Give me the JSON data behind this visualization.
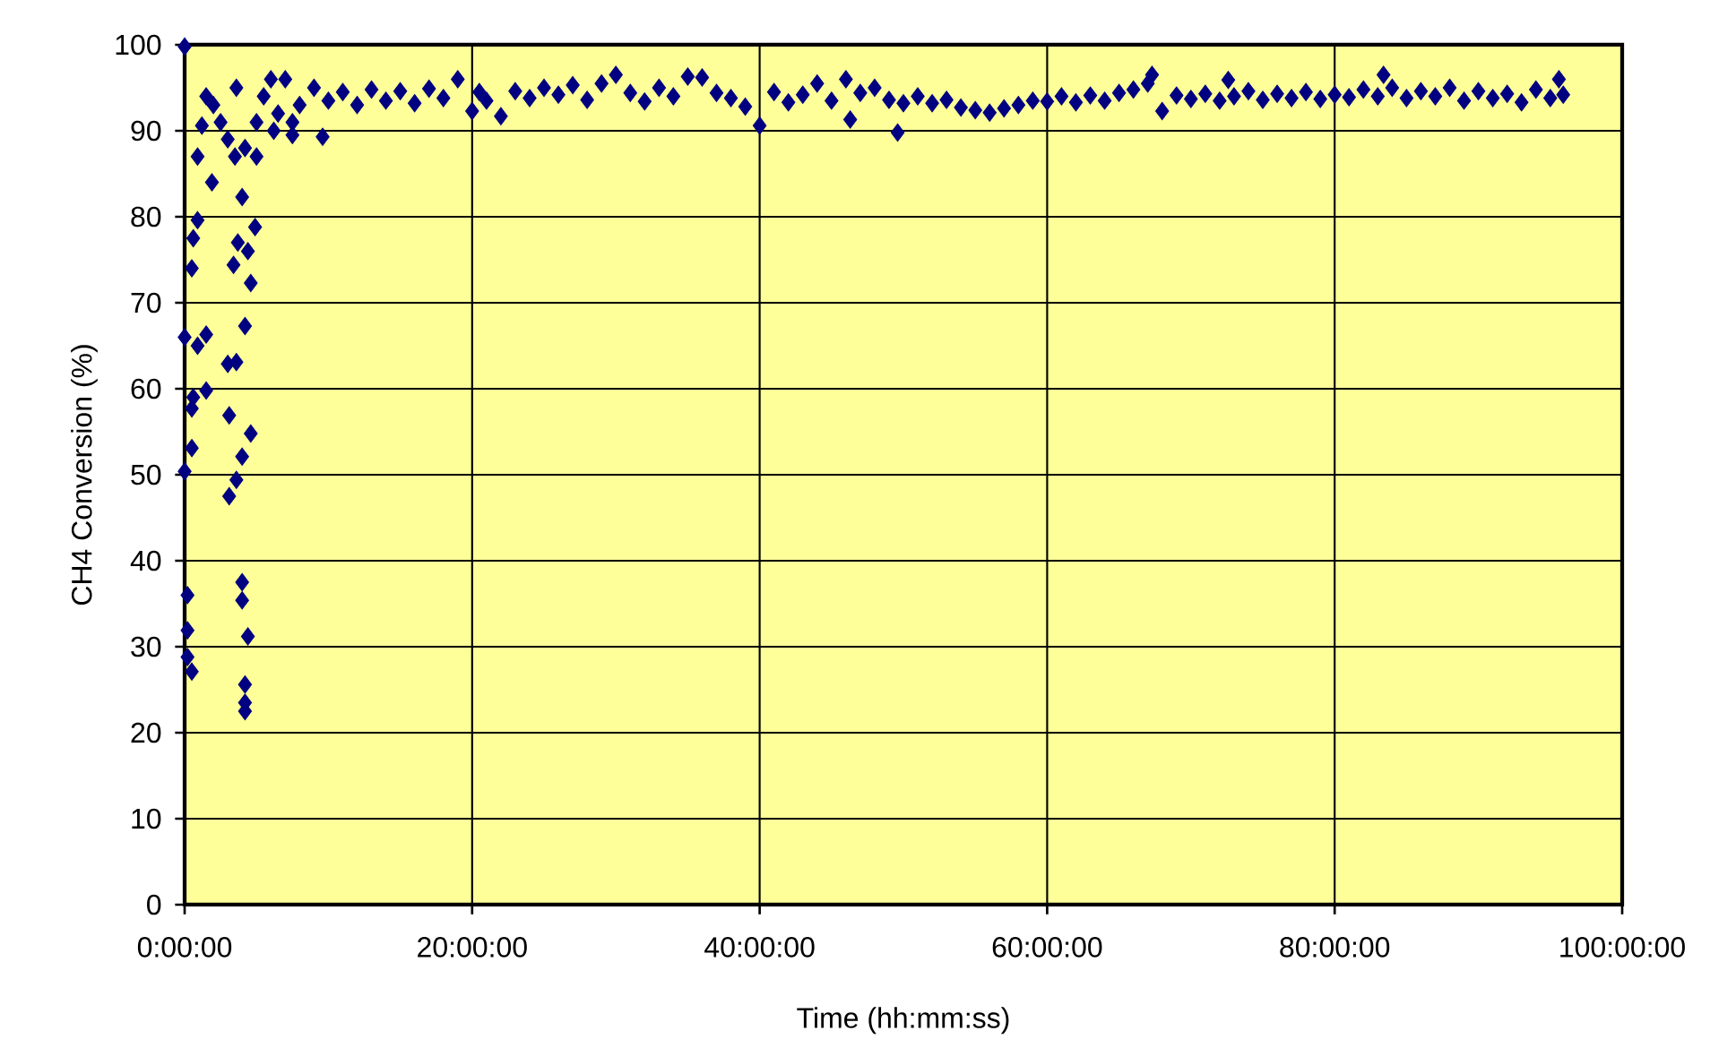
{
  "chart_data": {
    "type": "scatter",
    "xlabel": "Time (hh:mm:ss)",
    "ylabel": "CH4 Conversion (%)",
    "xlim": [
      0,
      100
    ],
    "ylim": [
      0,
      100
    ],
    "xticks": [
      {
        "value": 0,
        "label": "0:00:00"
      },
      {
        "value": 20,
        "label": "20:00:00"
      },
      {
        "value": 40,
        "label": "40:00:00"
      },
      {
        "value": 60,
        "label": "60:00:00"
      },
      {
        "value": 80,
        "label": "80:00:00"
      },
      {
        "value": 100,
        "label": "100:00:00"
      }
    ],
    "yticks": [
      0,
      10,
      20,
      30,
      40,
      50,
      60,
      70,
      80,
      90,
      100
    ],
    "grid": true,
    "marker": "diamond",
    "series": [
      {
        "color": "#000080",
        "x": [
          0,
          1.5,
          3.6,
          1.2,
          0.9,
          1.9,
          4.0,
          0.9,
          0.6,
          4.9,
          3.7,
          4.4,
          0.5,
          3.4,
          4.6,
          4.2,
          0,
          1.5,
          0.9,
          3.6,
          3.0,
          1.5,
          0.6,
          0.5,
          3.1,
          4.6,
          0.5,
          4.0,
          0,
          3.6,
          3.1,
          4.0,
          0.2,
          4.0,
          0.2,
          4.4,
          0.2,
          0.5,
          4.2,
          4.2,
          4.2,
          2.0,
          2.5,
          3.0,
          3.5,
          4.2,
          5.0,
          5.0,
          5.5,
          6.0,
          7.0,
          6.5,
          7.5,
          8.0,
          9.0,
          7.5,
          9.6,
          6.2,
          10,
          11,
          12,
          13,
          14,
          15,
          16,
          17,
          18,
          19,
          20,
          20.5,
          21,
          22,
          23,
          24,
          25,
          26,
          27,
          28,
          29,
          30,
          31,
          32,
          33,
          34,
          35,
          36,
          37,
          38,
          39,
          40,
          41,
          42,
          43,
          44,
          45,
          46,
          46.3,
          47,
          48,
          49,
          49.6,
          50,
          51,
          52,
          53,
          54,
          55,
          56,
          57,
          58,
          59,
          60,
          61,
          62,
          63,
          64,
          65,
          66,
          67,
          67.3,
          68,
          69,
          70,
          71,
          72,
          72.6,
          73,
          74,
          75,
          76,
          77,
          78,
          79,
          80,
          81,
          82,
          83,
          83.4,
          84,
          85,
          86,
          87,
          88,
          89,
          90,
          91,
          92,
          93,
          94,
          95,
          95.6,
          95.9
        ],
        "values": [
          99.8,
          94,
          95,
          90.6,
          87,
          84,
          82.3,
          79.6,
          77.5,
          78.8,
          77,
          76,
          74,
          74.4,
          72.3,
          67.3,
          66,
          66.3,
          65,
          63.1,
          62.9,
          59.8,
          59,
          57.7,
          56.9,
          54.8,
          53.1,
          52.1,
          50.4,
          49.4,
          47.5,
          37.5,
          36,
          35.4,
          31.9,
          31.2,
          28.8,
          27.1,
          25.6,
          23.5,
          22.5,
          93,
          91,
          89,
          87,
          88,
          87,
          91,
          94,
          96,
          96,
          92,
          91,
          93,
          95,
          89.5,
          89.3,
          90,
          93.5,
          94.5,
          93,
          94.8,
          93.5,
          94.6,
          93.2,
          94.9,
          93.8,
          96,
          92.3,
          94.5,
          93.5,
          91.7,
          94.6,
          93.8,
          95,
          94.2,
          95.3,
          93.6,
          95.5,
          96.5,
          94.4,
          93.4,
          95,
          94,
          96.3,
          96.2,
          94.4,
          93.8,
          92.8,
          90.6,
          94.5,
          93.3,
          94.2,
          95.5,
          93.5,
          96,
          91.3,
          94.4,
          95,
          93.6,
          89.8,
          93.2,
          94,
          93.2,
          93.6,
          92.7,
          92.4,
          92.1,
          92.6,
          93,
          93.5,
          93.4,
          94,
          93.3,
          94.1,
          93.5,
          94.4,
          94.8,
          95.5,
          96.5,
          92.3,
          94.1,
          93.7,
          94.3,
          93.5,
          95.9,
          94,
          94.6,
          93.6,
          94.3,
          93.8,
          94.5,
          93.7,
          94.2,
          93.9,
          94.8,
          94,
          96.5,
          95,
          93.8,
          94.6,
          94,
          95,
          93.5,
          94.6,
          93.8,
          94.3,
          93.3,
          94.8,
          93.8,
          96,
          94.2
        ]
      }
    ]
  }
}
